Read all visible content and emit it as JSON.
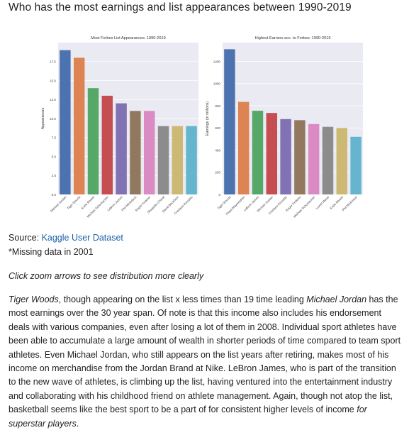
{
  "page": {
    "title": "Who has the most earnings and list appearances between 1990-2019"
  },
  "source": {
    "prefix": "Source: ",
    "link_text": "Kaggle User Dataset"
  },
  "note": "*Missing data in 2001",
  "hint": "Click zoom arrows to see distribution more clearly",
  "body": {
    "s1_italic": "Tiger Woods",
    "s1_text": ", though appearing on the list x less times than 19 time leading ",
    "s1_italic2": "Michael Jordan",
    "s1_text2": " has the most earnings over the 30 year span. Of note is that this income also includes his endorsement deals with various companies, even after losing a lot of them in 2008. Individual sport athletes have been able to accumulate a large amount of wealth in shorter periods of time compared to team sport athletes. Even Michael Jordan, who still appears on the list years after retiring, makes most of his income on merchandise from the Jordan Brand at Nike. LeBron James, who is part of the transition to the new wave of athletes, is climbing up the list, having ventured into the entertainment industry and collaborating with his childhood friend on athlete management. Again, though not atop the list, basketball seems like the best sport to be a part of for consistent higher levels of income ",
    "s1_italic3": "for superstar players",
    "s1_end": "."
  },
  "chart_data": [
    {
      "type": "bar",
      "title": "Most Forbes List Appearances: 1990-2019",
      "xlabel": "",
      "ylabel": "Appearances",
      "ylim": [
        0,
        20
      ],
      "yticks": [
        0.0,
        2.5,
        5.0,
        7.5,
        10.0,
        12.5,
        15.0,
        17.5
      ],
      "ytick_labels": [
        "0.0",
        "2.5",
        "5.0",
        "7.5",
        "10.0",
        "12.5",
        "15.0",
        "17.5"
      ],
      "grid": true,
      "categories": [
        "Michael Jordan",
        "Tiger Woods",
        "Kobe Bryant",
        "Michael Schumacher",
        "LeBron James",
        "Phil Mickelson",
        "Roger Federer",
        "Shaquille O'Neal",
        "David Beckham",
        "Cristiano Ronaldo"
      ],
      "values": [
        19,
        18,
        14,
        13,
        12,
        11,
        11,
        9,
        9,
        9
      ],
      "colors": [
        "#4c72b0",
        "#dd8452",
        "#55a868",
        "#c44e52",
        "#8172b3",
        "#937860",
        "#da8bc3",
        "#8c8c8c",
        "#ccb974",
        "#64b5cd"
      ]
    },
    {
      "type": "bar",
      "title": "Highest Earners acc. to Forbes: 1990-2019",
      "xlabel": "",
      "ylabel": "Earnings (in millions)",
      "ylim": [
        0,
        1370
      ],
      "yticks": [
        0,
        200,
        400,
        600,
        800,
        1000,
        1200
      ],
      "ytick_labels": [
        "0",
        "200",
        "400",
        "600",
        "800",
        "1000",
        "1200"
      ],
      "grid": true,
      "categories": [
        "Tiger Woods",
        "Floyd Mayweather",
        "LeBron James",
        "Michael Jordan",
        "Cristiano Ronaldo",
        "Roger Federer",
        "Michael Schumacher",
        "Lionel Messi",
        "Kobe Bryant",
        "Phil Mickelson"
      ],
      "values": [
        1310,
        835,
        755,
        735,
        680,
        670,
        635,
        610,
        600,
        520
      ],
      "colors": [
        "#4c72b0",
        "#dd8452",
        "#55a868",
        "#c44e52",
        "#8172b3",
        "#937860",
        "#da8bc3",
        "#8c8c8c",
        "#ccb974",
        "#64b5cd"
      ]
    }
  ]
}
